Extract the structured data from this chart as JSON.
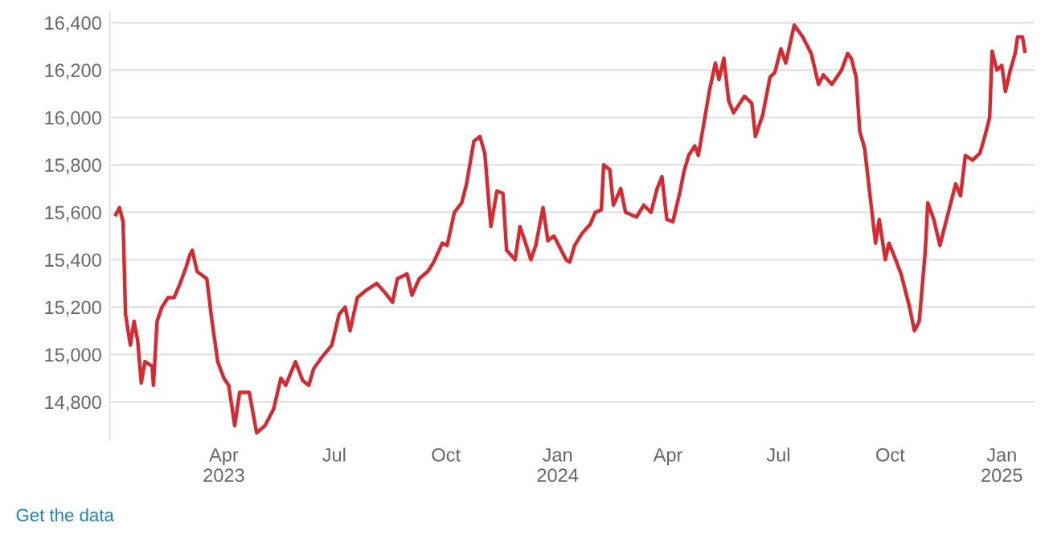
{
  "chart_data": {
    "type": "line",
    "x": [
      "2023-01-02",
      "2023-01-05",
      "2023-01-08",
      "2023-01-10",
      "2023-01-14",
      "2023-01-17",
      "2023-01-20",
      "2023-01-23",
      "2023-01-26",
      "2023-02-01",
      "2023-02-02",
      "2023-02-05",
      "2023-02-09",
      "2023-02-14",
      "2023-02-19",
      "2023-02-24",
      "2023-03-01",
      "2023-03-04",
      "2023-03-06",
      "2023-03-10",
      "2023-03-18",
      "2023-03-22",
      "2023-03-27",
      "2023-04-01",
      "2023-04-05",
      "2023-04-10",
      "2023-04-14",
      "2023-04-22",
      "2023-04-28",
      "2023-05-05",
      "2023-05-12",
      "2023-05-18",
      "2023-05-22",
      "2023-05-30",
      "2023-06-05",
      "2023-06-10",
      "2023-06-14",
      "2023-06-21",
      "2023-06-29",
      "2023-07-05",
      "2023-07-10",
      "2023-07-14",
      "2023-07-20",
      "2023-07-27",
      "2023-08-05",
      "2023-08-12",
      "2023-08-18",
      "2023-08-22",
      "2023-08-30",
      "2023-09-03",
      "2023-09-09",
      "2023-09-16",
      "2023-09-21",
      "2023-09-28",
      "2023-10-02",
      "2023-10-08",
      "2023-10-14",
      "2023-10-18",
      "2023-10-24",
      "2023-10-29",
      "2023-11-02",
      "2023-11-07",
      "2023-11-12",
      "2023-11-17",
      "2023-11-20",
      "2023-11-27",
      "2023-12-01",
      "2023-12-05",
      "2023-12-10",
      "2023-12-14",
      "2023-12-20",
      "2023-12-24",
      "2023-12-29",
      "2024-01-02",
      "2024-01-08",
      "2024-01-11",
      "2024-01-15",
      "2024-01-21",
      "2024-01-28",
      "2024-02-01",
      "2024-02-06",
      "2024-02-08",
      "2024-02-13",
      "2024-02-16",
      "2024-02-22",
      "2024-02-26",
      "2024-03-06",
      "2024-03-12",
      "2024-03-18",
      "2024-03-23",
      "2024-03-27",
      "2024-03-31",
      "2024-04-05",
      "2024-04-11",
      "2024-04-14",
      "2024-04-18",
      "2024-04-23",
      "2024-04-26",
      "2024-05-05",
      "2024-05-10",
      "2024-05-13",
      "2024-05-17",
      "2024-05-21",
      "2024-05-25",
      "2024-06-03",
      "2024-06-09",
      "2024-06-12",
      "2024-06-18",
      "2024-06-24",
      "2024-06-28",
      "2024-07-03",
      "2024-07-07",
      "2024-07-14",
      "2024-07-21",
      "2024-07-28",
      "2024-08-03",
      "2024-08-07",
      "2024-08-14",
      "2024-08-22",
      "2024-08-27",
      "2024-08-30",
      "2024-09-03",
      "2024-09-06",
      "2024-09-10",
      "2024-09-14",
      "2024-09-19",
      "2024-09-22",
      "2024-09-27",
      "2024-09-30",
      "2024-10-04",
      "2024-10-10",
      "2024-10-17",
      "2024-10-21",
      "2024-10-25",
      "2024-10-30",
      "2024-11-01",
      "2024-11-06",
      "2024-11-11",
      "2024-11-18",
      "2024-11-24",
      "2024-11-28",
      "2024-12-02",
      "2024-12-08",
      "2024-12-14",
      "2024-12-18",
      "2024-12-22",
      "2024-12-24",
      "2024-12-28",
      "2025-01-01",
      "2025-01-04",
      "2025-01-08",
      "2025-01-12",
      "2025-01-14",
      "2025-01-18",
      "2025-01-20"
    ],
    "series": [
      {
        "color": "#d7292f",
        "values": [
          15590,
          15620,
          15560,
          15170,
          15040,
          15140,
          15060,
          14880,
          14970,
          14950,
          14870,
          15140,
          15200,
          15240,
          15240,
          15300,
          15370,
          15420,
          15440,
          15350,
          15320,
          15150,
          14970,
          14900,
          14870,
          14700,
          14840,
          14840,
          14670,
          14700,
          14770,
          14900,
          14870,
          14970,
          14890,
          14870,
          14940,
          14990,
          15040,
          15170,
          15200,
          15100,
          15240,
          15270,
          15300,
          15260,
          15220,
          15320,
          15340,
          15250,
          15320,
          15350,
          15390,
          15470,
          15460,
          15600,
          15640,
          15720,
          15900,
          15920,
          15850,
          15540,
          15690,
          15680,
          15440,
          15400,
          15540,
          15480,
          15400,
          15460,
          15620,
          15480,
          15500,
          15460,
          15400,
          15390,
          15460,
          15510,
          15550,
          15600,
          15610,
          15800,
          15780,
          15630,
          15700,
          15600,
          15580,
          15630,
          15600,
          15700,
          15750,
          15570,
          15560,
          15690,
          15770,
          15840,
          15880,
          15840,
          16110,
          16230,
          16160,
          16250,
          16070,
          16020,
          16090,
          16060,
          15920,
          16010,
          16170,
          16190,
          16290,
          16230,
          16390,
          16340,
          16270,
          16140,
          16180,
          16140,
          16200,
          16270,
          16250,
          16170,
          15940,
          15870,
          15690,
          15470,
          15570,
          15400,
          15470,
          15420,
          15340,
          15200,
          15100,
          15140,
          15440,
          15640,
          15570,
          15460,
          15600,
          15720,
          15670,
          15840,
          15820,
          15850,
          15920,
          16000,
          16280,
          16200,
          16220,
          16110,
          16200,
          16270,
          16340,
          16340,
          16280
        ]
      }
    ],
    "xlim": [
      "2022-12-28",
      "2025-01-28"
    ],
    "xticks": [
      {
        "value": "2023-04-01",
        "label": "Apr\n2023"
      },
      {
        "value": "2023-07-01",
        "label": "Jul"
      },
      {
        "value": "2023-10-01",
        "label": "Oct"
      },
      {
        "value": "2024-01-01",
        "label": "Jan\n2024"
      },
      {
        "value": "2024-04-01",
        "label": "Apr"
      },
      {
        "value": "2024-07-01",
        "label": "Jul"
      },
      {
        "value": "2024-10-01",
        "label": "Oct"
      },
      {
        "value": "2025-01-01",
        "label": "Jan\n2025"
      }
    ],
    "ylim": [
      14640,
      16450
    ],
    "yticks": [
      {
        "value": 14800,
        "label": "14,800"
      },
      {
        "value": 15000,
        "label": "15,000"
      },
      {
        "value": 15200,
        "label": "15,200"
      },
      {
        "value": 15400,
        "label": "15,400"
      },
      {
        "value": 15600,
        "label": "15,600"
      },
      {
        "value": 15800,
        "label": "15,800"
      },
      {
        "value": 16000,
        "label": "16,000"
      },
      {
        "value": 16200,
        "label": "16,200"
      },
      {
        "value": 16400,
        "label": "16,400"
      }
    ],
    "grid": "y",
    "marker": "none",
    "line_style": "solid",
    "annotations": [
      "Get the data"
    ]
  }
}
